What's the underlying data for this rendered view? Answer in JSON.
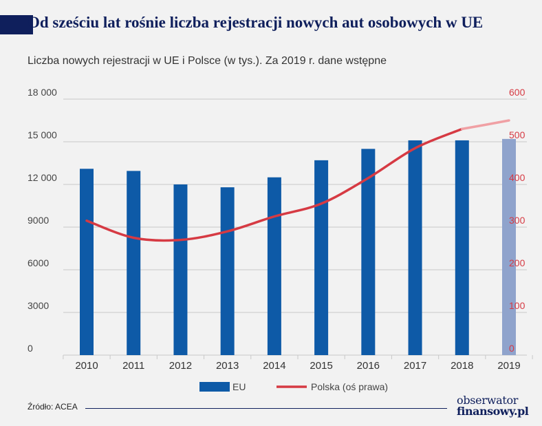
{
  "title": "Od sześciu lat rośnie liczba rejestracji nowych aut osobowych w UE",
  "subtitle": "Liczba nowych rejestracji w UE i Polsce (w tys.). Za 2019 r. dane wstępne",
  "source": "Źródło: ACEA",
  "logo": {
    "line1": "obserwator",
    "line2": "finansowy.pl"
  },
  "colors": {
    "eu_bar": "#0e5aa7",
    "eu_bar_preliminary": "#8fa3cc",
    "polska_line": "#d63a43",
    "polska_line_preliminary": "#f0a0a4",
    "right_axis_text": "#d63a43",
    "grid": "#c8c8c8",
    "background": "#f2f2f2"
  },
  "chart_data": {
    "type": "bar+line",
    "categories": [
      "2010",
      "2011",
      "2012",
      "2013",
      "2014",
      "2015",
      "2016",
      "2017",
      "2018",
      "2019"
    ],
    "series": [
      {
        "name": "EU",
        "type": "bar",
        "axis": "left",
        "values": [
          13100,
          12950,
          12000,
          11800,
          12500,
          13700,
          14500,
          15100,
          15100,
          15200
        ],
        "preliminary_from": "2019"
      },
      {
        "name": "Polska (oś prawa)",
        "type": "line",
        "axis": "right",
        "values": [
          315,
          275,
          270,
          290,
          325,
          355,
          415,
          485,
          530,
          550
        ],
        "preliminary_from": "2019"
      }
    ],
    "y_left": {
      "ticks": [
        "0",
        "3000",
        "6000",
        "9000",
        "12 000",
        "15 000",
        "18 000"
      ],
      "min": 0,
      "max": 18000
    },
    "y_right": {
      "ticks": [
        "0",
        "100",
        "200",
        "300",
        "400",
        "500",
        "600"
      ],
      "min": 0,
      "max": 600
    },
    "grid": true,
    "legend_position": "bottom"
  }
}
